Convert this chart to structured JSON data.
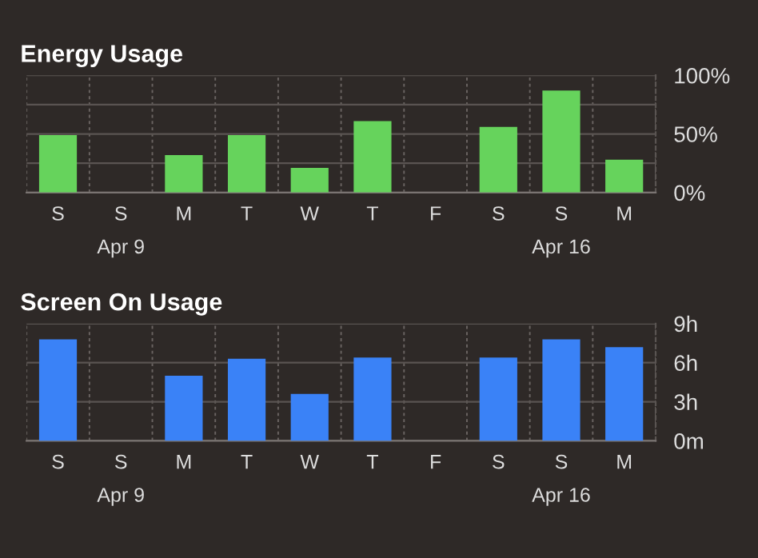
{
  "chart_data": [
    {
      "type": "bar",
      "title": "Energy Usage",
      "categories": [
        "S",
        "S\nApr 9",
        "M",
        "T",
        "W",
        "T",
        "F",
        "S",
        "S\nApr 16",
        "M"
      ],
      "series": [
        {
          "color": "#66d35c",
          "values": [
            49,
            null,
            32,
            49,
            21,
            61,
            null,
            56,
            87,
            28
          ]
        }
      ],
      "ylim": [
        0,
        100
      ],
      "yticks": [
        {
          "value": 0,
          "label": "0%"
        },
        {
          "value": 25,
          "label": null
        },
        {
          "value": 50,
          "label": "50%"
        },
        {
          "value": 75,
          "label": null
        },
        {
          "value": 100,
          "label": "100%"
        }
      ],
      "grid": true
    },
    {
      "type": "bar",
      "title": "Screen On Usage",
      "categories": [
        "S",
        "S\nApr 9",
        "M",
        "T",
        "W",
        "T",
        "F",
        "S",
        "S\nApr 16",
        "M"
      ],
      "series": [
        {
          "color": "#3a82f7",
          "values": [
            7.8,
            null,
            5.0,
            6.3,
            3.6,
            6.4,
            null,
            6.4,
            7.8,
            7.2
          ]
        }
      ],
      "ylim": [
        0,
        9
      ],
      "yticks": [
        {
          "value": 0,
          "label": "0m"
        },
        {
          "value": 3,
          "label": "3h"
        },
        {
          "value": 6,
          "label": "6h"
        },
        {
          "value": 9,
          "label": "9h"
        }
      ],
      "grid": true
    }
  ]
}
